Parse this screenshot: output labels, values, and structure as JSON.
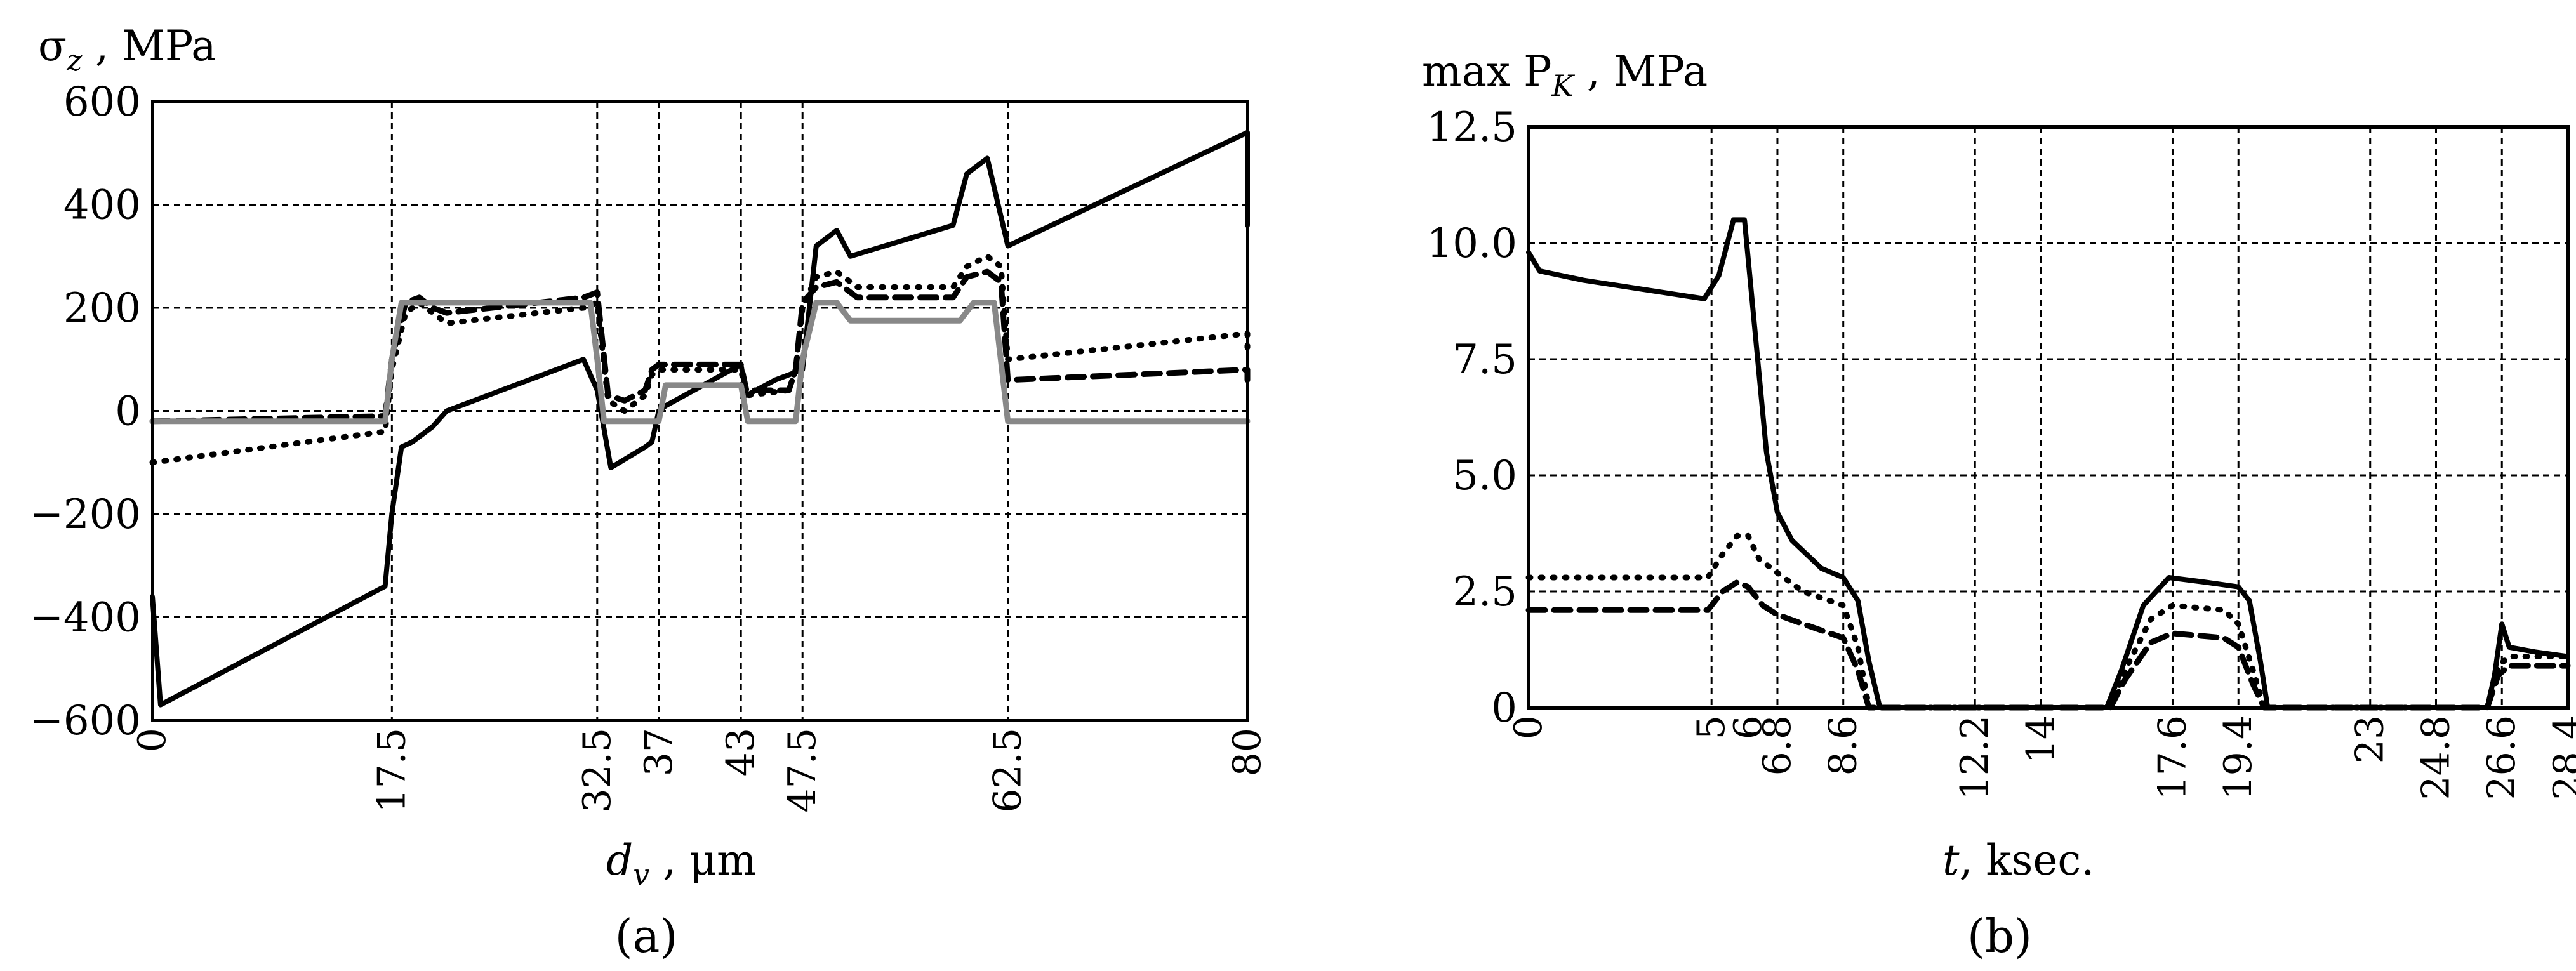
{
  "chart_data": [
    {
      "panel": "a",
      "caption": "(a)",
      "type": "line",
      "title": "",
      "ylabel": "σz , MPa",
      "ylabel_main": "σ",
      "ylabel_sub": "z",
      "ylabel_unit": " , MPa",
      "xlabel": "dv , μm",
      "xlabel_main": "d",
      "xlabel_sub": "v",
      "xlabel_unit": " , μm",
      "xlim": [
        0,
        80
      ],
      "ylim": [
        -600,
        600
      ],
      "yticks": [
        600,
        400,
        200,
        0,
        -200,
        -400,
        -600
      ],
      "ytick_labels": [
        "600",
        "400",
        "200",
        "0",
        "−200",
        "−400",
        "−600"
      ],
      "xticks": [
        0,
        17.5,
        32.5,
        37,
        43,
        47.5,
        62.5,
        80
      ],
      "xtick_labels": [
        "0",
        "17.5",
        "32.5",
        "37",
        "43",
        "47.5",
        "62.5",
        "80"
      ],
      "grid": true,
      "series": [
        {
          "name": "solid",
          "color": "#000000",
          "style": "solid",
          "x": [
            0,
            0.6,
            17,
            17.5,
            18.2,
            19,
            20,
            20.5,
            21.5,
            31.5,
            32.5,
            33.5,
            36,
            36.5,
            37,
            37.5,
            43,
            43.4,
            45.5,
            47.5,
            48.5,
            50,
            51,
            58.5,
            59.5,
            61,
            62.5,
            80,
            80
          ],
          "y": [
            -360,
            -570,
            -340,
            -200,
            -70,
            -60,
            -40,
            -30,
            0,
            100,
            40,
            -110,
            -70,
            -60,
            0,
            10,
            90,
            30,
            60,
            80,
            320,
            350,
            300,
            360,
            460,
            490,
            320,
            540,
            360
          ]
        },
        {
          "name": "dotted",
          "color": "#000000",
          "style": "dotted",
          "x": [
            0,
            17,
            17.5,
            18.5,
            19.5,
            20.5,
            21.5,
            31.5,
            32.5,
            33.3,
            34.5,
            36,
            36.5,
            37,
            43,
            43.4,
            46.5,
            47,
            47.5,
            48.5,
            50,
            51.5,
            58.5,
            59.5,
            61,
            62,
            62.5,
            80,
            80
          ],
          "y": [
            -100,
            -40,
            80,
            190,
            210,
            190,
            170,
            200,
            210,
            20,
            0,
            30,
            70,
            80,
            80,
            30,
            40,
            80,
            200,
            260,
            270,
            240,
            240,
            280,
            300,
            280,
            100,
            150,
            120
          ]
        },
        {
          "name": "dashed",
          "color": "#000000",
          "style": "dashed",
          "x": [
            0,
            17,
            17.5,
            18.5,
            19.5,
            20.5,
            21.5,
            31.5,
            32.5,
            33.3,
            34.5,
            36,
            36.5,
            37,
            43,
            43.4,
            46.5,
            47,
            47.5,
            48.5,
            50,
            51.5,
            58.5,
            59.5,
            61,
            62,
            62.5,
            80,
            80
          ],
          "y": [
            -20,
            -10,
            100,
            210,
            220,
            200,
            190,
            220,
            230,
            30,
            20,
            40,
            80,
            90,
            90,
            40,
            40,
            80,
            210,
            240,
            250,
            220,
            220,
            260,
            270,
            250,
            60,
            80,
            60
          ]
        },
        {
          "name": "gray",
          "color": "#888888",
          "style": "solid",
          "x": [
            0,
            17,
            17.5,
            18.2,
            32,
            32.5,
            33,
            37,
            37.5,
            43,
            43.5,
            47,
            47.5,
            48.5,
            50,
            51,
            59,
            60,
            61.5,
            62.5,
            80
          ],
          "y": [
            -20,
            -20,
            100,
            210,
            210,
            100,
            -20,
            -20,
            50,
            50,
            -20,
            -20,
            100,
            210,
            210,
            175,
            175,
            210,
            210,
            -20,
            -20
          ]
        }
      ]
    },
    {
      "panel": "b",
      "caption": "(b)",
      "type": "line",
      "title": "",
      "ylabel": "max PK , MPa",
      "ylabel_main": "max P",
      "ylabel_sub": "K",
      "ylabel_unit": " , MPa",
      "xlabel": "t, ksec.",
      "xlabel_main": "t",
      "xlabel_unit": ", ksec.",
      "xlim": [
        0,
        28.4
      ],
      "ylim": [
        0,
        12.5
      ],
      "yticks": [
        12.5,
        10.0,
        7.5,
        5.0,
        2.5,
        0
      ],
      "ytick_labels": [
        "12.5",
        "10.0",
        "7.5",
        "5.0",
        "2.5",
        "0"
      ],
      "xticks": [
        0,
        5,
        6.8,
        8.6,
        12.2,
        14,
        17.6,
        19.4,
        23,
        24.8,
        26.6,
        28.4
      ],
      "xtick_labels": [
        "0",
        "5",
        "6.8",
        "8.6",
        "12.2",
        "14",
        "17.6",
        "19.4",
        "23",
        "24.8",
        "26.6",
        "28.4"
      ],
      "extra_xtick": {
        "value": 6,
        "label": "6"
      },
      "grid": true,
      "series": [
        {
          "name": "solid",
          "color": "#000000",
          "style": "solid",
          "x": [
            0,
            0.3,
            1.5,
            4.8,
            5.2,
            5.6,
            5.9,
            6.2,
            6.5,
            6.8,
            7.2,
            8.0,
            8.6,
            9.0,
            9.3,
            9.6,
            15.8,
            16.2,
            16.8,
            17.5,
            18.5,
            19.4,
            19.7,
            20.0,
            20.2,
            26.2,
            26.4,
            26.6,
            26.8,
            27.5,
            28.4
          ],
          "y": [
            9.8,
            9.4,
            9.2,
            8.8,
            9.3,
            10.5,
            10.5,
            8.0,
            5.5,
            4.2,
            3.6,
            3.0,
            2.8,
            2.3,
            1.0,
            0,
            0,
            0.8,
            2.2,
            2.8,
            2.7,
            2.6,
            2.3,
            1.0,
            0,
            0,
            0.7,
            1.8,
            1.3,
            1.2,
            1.1
          ]
        },
        {
          "name": "dotted",
          "color": "#000000",
          "style": "dotted",
          "x": [
            0,
            4.9,
            5.3,
            5.7,
            6.0,
            6.3,
            6.8,
            7.5,
            8.6,
            9.0,
            9.3,
            15.9,
            16.3,
            17.0,
            17.6,
            19.0,
            19.4,
            19.8,
            20.1,
            26.2,
            26.5,
            26.8,
            28.4
          ],
          "y": [
            2.8,
            2.8,
            3.3,
            3.7,
            3.7,
            3.2,
            2.9,
            2.5,
            2.2,
            1.3,
            0,
            0,
            0.8,
            1.9,
            2.2,
            2.1,
            1.8,
            0.8,
            0,
            0,
            0.9,
            1.1,
            1.1
          ]
        },
        {
          "name": "dashed",
          "color": "#000000",
          "style": "dashed",
          "x": [
            0,
            4.9,
            5.3,
            5.7,
            6.0,
            6.4,
            6.8,
            7.5,
            8.6,
            9.0,
            9.3,
            15.9,
            16.3,
            17.0,
            17.6,
            19.0,
            19.4,
            19.8,
            20.1,
            26.2,
            26.5,
            26.8,
            28.4
          ],
          "y": [
            2.1,
            2.1,
            2.5,
            2.7,
            2.6,
            2.2,
            2.0,
            1.8,
            1.5,
            0.8,
            0,
            0,
            0.6,
            1.4,
            1.6,
            1.5,
            1.3,
            0.5,
            0,
            0,
            0.7,
            0.9,
            0.9
          ]
        }
      ]
    }
  ]
}
